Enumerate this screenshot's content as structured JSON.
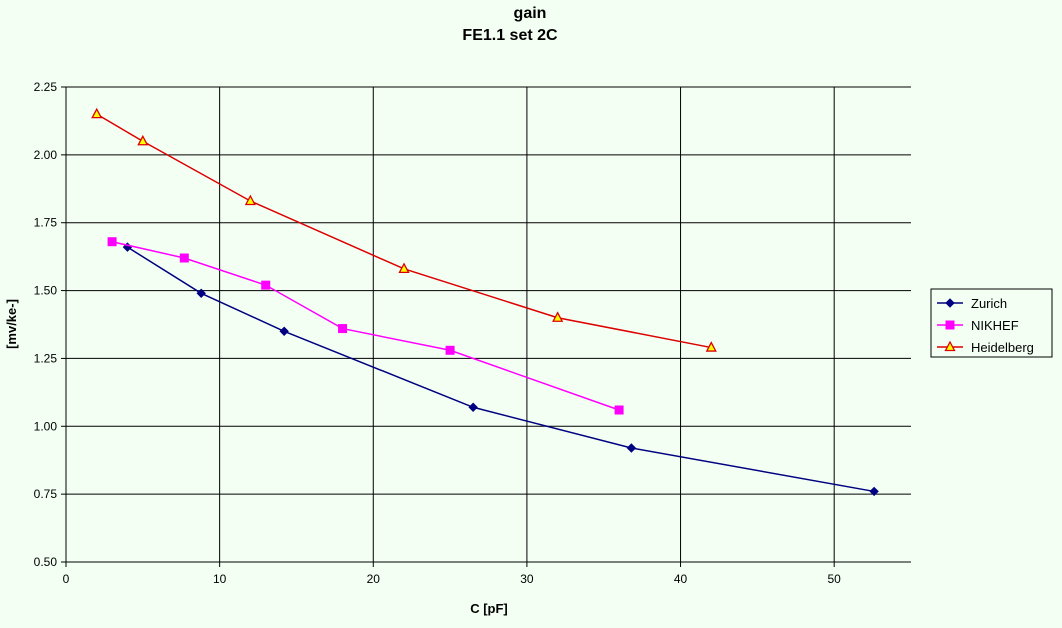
{
  "chart_data": {
    "type": "line",
    "title": "gain",
    "subtitle": "FE1.1 set 2C",
    "xlabel": "C [pF]",
    "ylabel": "[mv/ke-]",
    "xlim": [
      0,
      55
    ],
    "ylim": [
      0.5,
      2.25
    ],
    "x_ticks": [
      "0",
      "10",
      "20",
      "30",
      "40",
      "50"
    ],
    "y_ticks": [
      "0.50",
      "0.75",
      "1.00",
      "1.25",
      "1.50",
      "1.75",
      "2.00",
      "2.25"
    ],
    "grid": true,
    "legend_position": "right",
    "colors": {
      "background": "#F4FFF4",
      "grid": "#000000"
    },
    "series": [
      {
        "name": "Zurich",
        "color": "#000080",
        "marker": "diamond",
        "x": [
          4.0,
          8.8,
          14.2,
          26.5,
          36.8,
          52.6
        ],
        "y": [
          1.66,
          1.49,
          1.35,
          1.07,
          0.92,
          0.76
        ]
      },
      {
        "name": "NIKHEF",
        "color": "#FF00FF",
        "marker": "square",
        "x": [
          3.0,
          7.7,
          13.0,
          18.0,
          25.0,
          36.0
        ],
        "y": [
          1.68,
          1.62,
          1.52,
          1.36,
          1.28,
          1.06
        ]
      },
      {
        "name": "Heidelberg",
        "color": "#DD0000",
        "marker": "triangle",
        "x": [
          2.0,
          5.0,
          12.0,
          22.0,
          32.0,
          42.0
        ],
        "y": [
          2.15,
          2.05,
          1.83,
          1.58,
          1.4,
          1.29
        ]
      }
    ]
  }
}
